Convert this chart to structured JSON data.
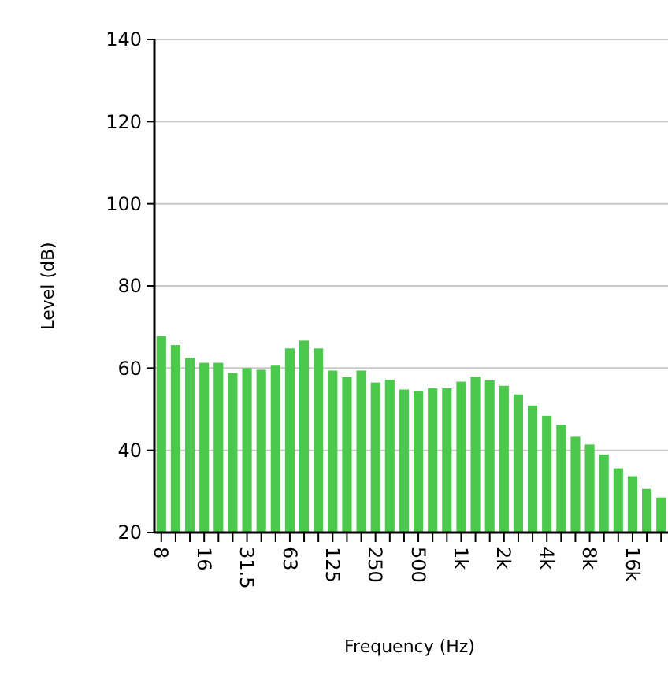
{
  "chart_data": {
    "type": "bar",
    "xlabel": "Frequency (Hz)",
    "ylabel": "Level (dB)",
    "categories": [
      "8",
      null,
      null,
      "16",
      null,
      null,
      "31.5",
      null,
      null,
      "63",
      null,
      null,
      "125",
      null,
      null,
      "250",
      null,
      null,
      "500",
      null,
      null,
      "1k",
      null,
      null,
      "2k",
      null,
      null,
      "4k",
      null,
      null,
      "8k",
      null,
      null,
      "16k",
      null,
      null
    ],
    "values": [
      67.8,
      65.6,
      62.5,
      61.3,
      61.3,
      58.8,
      60,
      59.6,
      60.6,
      64.8,
      66.7,
      64.8,
      59.4,
      57.8,
      59.4,
      56.5,
      57.2,
      54.8,
      54.4,
      55.1,
      55.1,
      56.7,
      57.9,
      57,
      55.7,
      53.6,
      50.9,
      48.4,
      46.2,
      43.3,
      41.4,
      39,
      35.6,
      33.7,
      30.6,
      28.5
    ],
    "color": "#4cc94c",
    "ylim": [
      20,
      140
    ],
    "yticks": [
      20,
      40,
      60,
      80,
      100,
      120,
      140
    ],
    "grid": "y"
  }
}
